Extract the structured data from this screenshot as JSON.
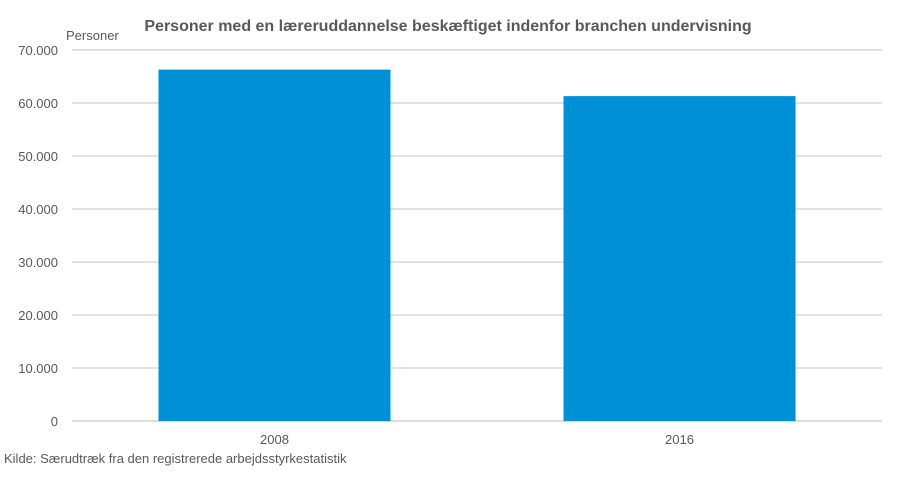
{
  "chart_data": {
    "type": "bar",
    "title": "Personer med en læreruddannelse beskæftiget indenfor branchen undervisning",
    "ylabel": "Personer",
    "xlabel": "",
    "categories": [
      "2008",
      "2016"
    ],
    "values": [
      66300,
      61300
    ],
    "ylim": [
      0,
      70000
    ],
    "yticks": [
      0,
      10000,
      20000,
      30000,
      40000,
      50000,
      60000,
      70000
    ],
    "ytick_labels": [
      "0",
      "10.000",
      "20.000",
      "30.000",
      "40.000",
      "50.000",
      "60.000",
      "70.000"
    ],
    "grid": true,
    "legend": "none",
    "bar_color": "#0090D6",
    "grid_color": "#c6c6c6"
  },
  "source": "Kilde: Særudtræk fra den registrerede arbejdsstyrkestatistik"
}
